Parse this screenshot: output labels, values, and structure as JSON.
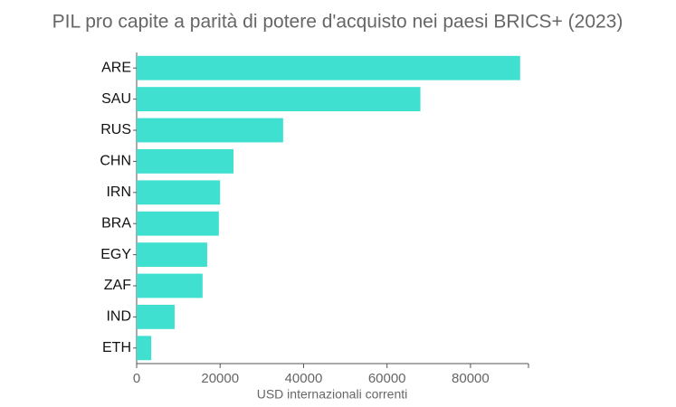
{
  "chart_data": {
    "type": "barh",
    "title": "PIL pro capite a parità di potere d'acquisto nei paesi BRICS+ (2023)",
    "xlabel": "USD internazionali correnti",
    "categories": [
      "ARE",
      "SAU",
      "RUS",
      "CHN",
      "IRN",
      "BRA",
      "EGY",
      "ZAF",
      "IND",
      "ETH"
    ],
    "values": [
      91900,
      68000,
      35100,
      23200,
      20000,
      19700,
      16900,
      15800,
      9100,
      3500
    ],
    "color": "#40e0d0",
    "xlim": [
      0,
      93900
    ],
    "xticks": [
      0,
      20000,
      40000,
      60000,
      80000
    ],
    "grid": false
  }
}
